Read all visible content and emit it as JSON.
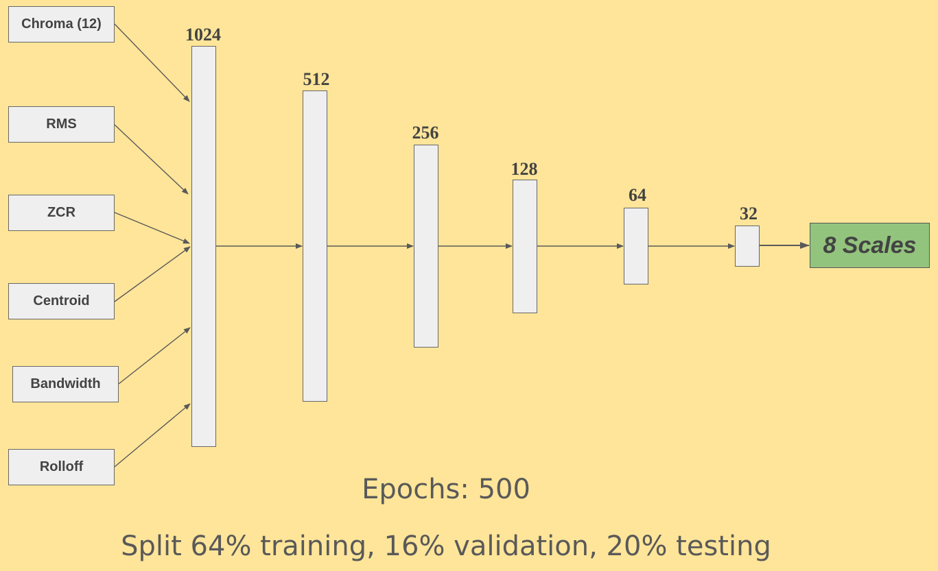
{
  "inputs": {
    "chroma": "Chroma (12)",
    "rms": "RMS",
    "zcr": "ZCR",
    "centroid": "Centroid",
    "bandwidth": "Bandwidth",
    "rolloff": "Rolloff"
  },
  "layers": {
    "l1": "1024",
    "l2": "512",
    "l3": "256",
    "l4": "128",
    "l5": "64",
    "l6": "32"
  },
  "output": "8 Scales",
  "notes": {
    "epochs": "Epochs: 500",
    "split": "Split 64% training, 16% validation, 20% testing"
  },
  "colors": {
    "background": "#ffe599",
    "box_fill": "#efefef",
    "output_fill": "#93c47d",
    "stroke": "#595959"
  }
}
